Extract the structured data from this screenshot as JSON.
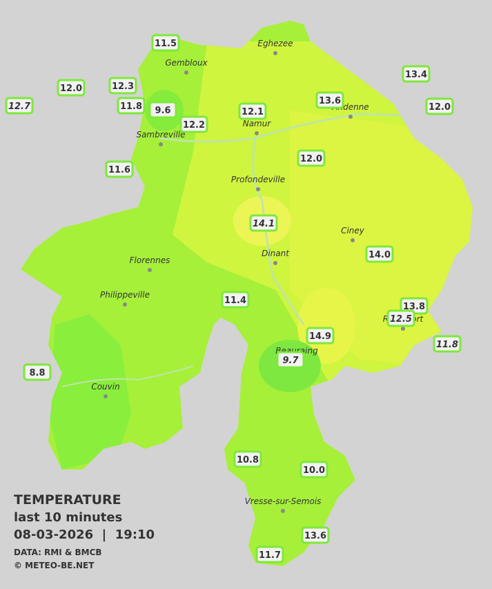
{
  "cities": [
    "Eghezee",
    "Gembloux",
    "Andenne",
    "Namur",
    "Sambreville",
    "Profondeville",
    "Ciney",
    "Dinant",
    "Florennes",
    "Philippeville",
    "Beauraing",
    "Rochefort",
    "Couvin",
    "Vresse-sur-Semois"
  ],
  "stations": [
    "11.5",
    "12.0",
    "12.3",
    "12.7",
    "11.8",
    "9.6",
    "12.2",
    "12.1",
    "13.6",
    "13.4",
    "12.0",
    "11.6",
    "12.0",
    "14.1",
    "14.0",
    "11.4",
    "13.8",
    "12.5",
    "11.8",
    "14.9",
    "9.7",
    "8.8",
    "10.8",
    "10.0",
    "13.6",
    "11.7"
  ],
  "legend": {
    "title": "TEMPERATURE",
    "subtitle": "last 10 minutes",
    "timestamp": "08-03-2026  |  19:10",
    "source": "DATA: RMI & BMCB",
    "credit": "© METEO-BE.NET"
  }
}
